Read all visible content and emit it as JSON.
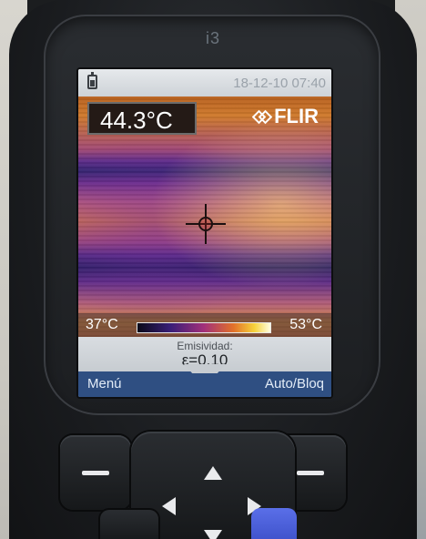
{
  "device": {
    "model": "i3"
  },
  "screen": {
    "status_bar": {
      "battery_icon": "battery-icon",
      "datetime": "18-12-10 07:40"
    },
    "measurement": {
      "temperature": "44.3°C"
    },
    "brand": {
      "logo_icon": "flir-diamond-icon",
      "logo_text": "FLIR"
    },
    "spot_meter_icon": "crosshair-icon",
    "scale": {
      "min_label": "37°C",
      "max_label": "53°C"
    },
    "emissivity": {
      "label": "Emisividad:",
      "value": "ε=0.10"
    },
    "softkeys": {
      "left_label": "Menú",
      "right_label": "Auto/Bloq"
    }
  },
  "keypad": {
    "left_button_icon": "dash-icon",
    "right_button_icon": "dash-icon",
    "dpad_icons": [
      "arrow-up-icon",
      "arrow-left-icon",
      "arrow-right-icon",
      "arrow-down-icon"
    ]
  },
  "colors": {
    "softkey_bar": "#2f4f82",
    "accent_blue_button": "#4a5fd8"
  }
}
